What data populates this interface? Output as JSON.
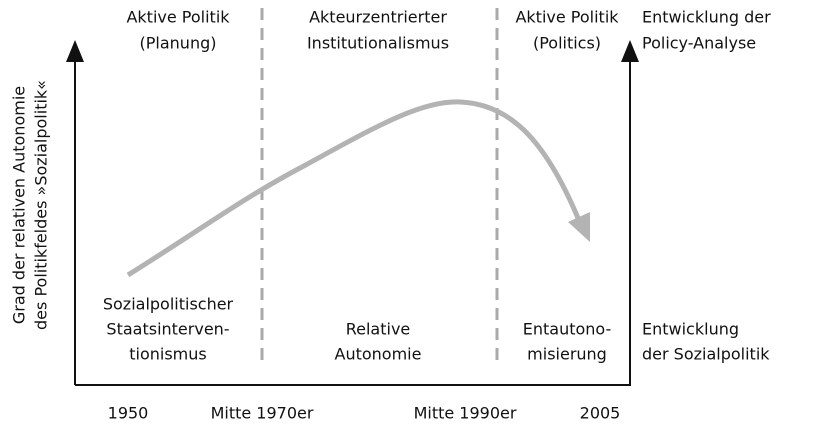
{
  "y_axis_label": [
    "Grad der relativen Autonomie",
    "des Politikfeldes »Sozialpolitik«"
  ],
  "top_labels": [
    [
      "Aktive Politik",
      "(Planung)"
    ],
    [
      "Akteurzentrierter",
      "Institutionalismus"
    ],
    [
      "Aktive Politik",
      "(Politics)"
    ]
  ],
  "top_right_label": [
    "Entwicklung der",
    "Policy-Analyse"
  ],
  "bottom_labels": [
    [
      "Sozialpolitischer",
      "Staatsinterven-",
      "tionismus"
    ],
    [
      "Relative",
      "Autonomie"
    ],
    [
      "Entautono-",
      "misierung"
    ]
  ],
  "bottom_right_label": [
    "Entwicklung",
    "der Sozialpolitik"
  ],
  "x_labels": [
    "1950",
    "Mitte 1970er",
    "Mitte 1990er",
    "2005"
  ]
}
